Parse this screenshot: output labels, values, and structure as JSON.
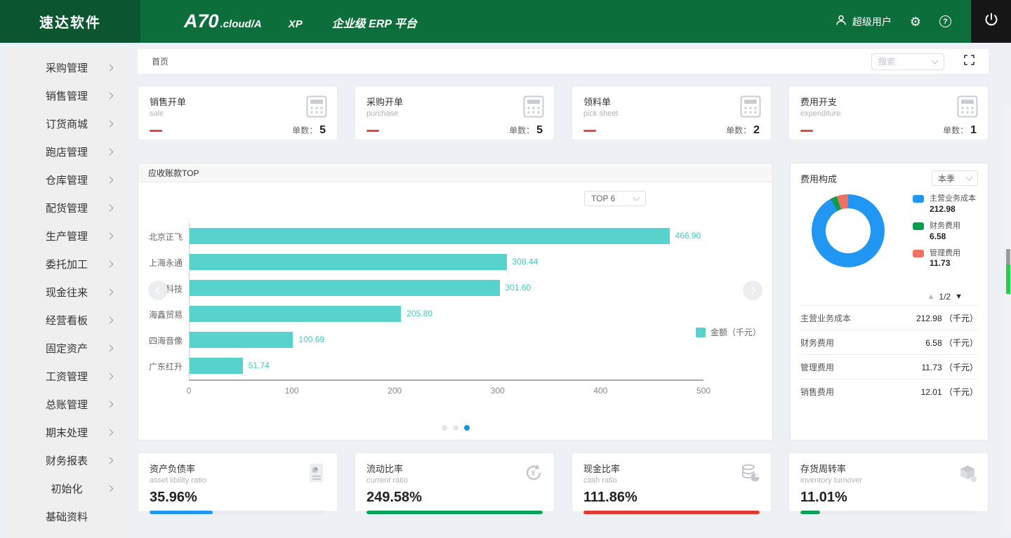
{
  "topbar": {
    "logo": "速达软件",
    "brand_main": "A70",
    "brand_suffix": ".cloud/A",
    "brand_xp": "XP",
    "brand_platform": "企业级 ERP 平台",
    "user": "超级用户"
  },
  "breadcrumb": {
    "home": "首页",
    "search_placeholder": "搜索"
  },
  "sidebar": {
    "items": [
      {
        "label": "采购管理",
        "has_submenu": true
      },
      {
        "label": "销售管理",
        "has_submenu": true
      },
      {
        "label": "订货商城",
        "has_submenu": true
      },
      {
        "label": "跑店管理",
        "has_submenu": true
      },
      {
        "label": "仓库管理",
        "has_submenu": true
      },
      {
        "label": "配货管理",
        "has_submenu": true
      },
      {
        "label": "生产管理",
        "has_submenu": true
      },
      {
        "label": "委托加工",
        "has_submenu": true
      },
      {
        "label": "现金往来",
        "has_submenu": true
      },
      {
        "label": "经营看板",
        "has_submenu": true
      },
      {
        "label": "固定资产",
        "has_submenu": true
      },
      {
        "label": "工资管理",
        "has_submenu": true
      },
      {
        "label": "总账管理",
        "has_submenu": true
      },
      {
        "label": "期末处理",
        "has_submenu": true
      },
      {
        "label": "财务报表",
        "has_submenu": true
      },
      {
        "label": "初始化",
        "has_submenu": true
      },
      {
        "label": "基础资料",
        "has_submenu": false
      }
    ]
  },
  "stat_cards": [
    {
      "title": "销售开单",
      "subtitle": "sale",
      "count_label": "单数：",
      "count": "5"
    },
    {
      "title": "采购开单",
      "subtitle": "purchase",
      "count_label": "单数：",
      "count": "5"
    },
    {
      "title": "领料单",
      "subtitle": "pick sheet",
      "count_label": "单数：",
      "count": "2"
    },
    {
      "title": "费用开支",
      "subtitle": "expenditure",
      "count_label": "单数：",
      "count": "1"
    }
  ],
  "chart_data": [
    {
      "type": "bar",
      "orientation": "horizontal",
      "title": "应收账款TOP",
      "filter_label": "TOP 6",
      "categories": [
        "北京正飞",
        "上海永通",
        "洪海科技",
        "海鑫贸易",
        "四海音像",
        "广东红升"
      ],
      "values": [
        466.9,
        308.44,
        301.6,
        205.8,
        100.69,
        51.74
      ],
      "xlim": [
        0,
        500
      ],
      "xticks": [
        0,
        100,
        200,
        300,
        400,
        500
      ],
      "legend": [
        "金额（千元）"
      ],
      "legend_position": "right",
      "bar_color": "#57d2cc",
      "pagination": {
        "dots": 3,
        "active": 2
      }
    },
    {
      "type": "pie",
      "donut": true,
      "title": "费用构成",
      "period": "本季",
      "slices": [
        {
          "label": "主营业务成本",
          "value": 212.98,
          "color": "#2196f3"
        },
        {
          "label": "财务费用",
          "value": 6.58,
          "color": "#0b9d4e"
        },
        {
          "label": "管理费用",
          "value": 11.73,
          "color": "#f07062"
        },
        {
          "label": "销售费用",
          "value": 12.01,
          "color": ""
        }
      ],
      "visible_legend_count": 3,
      "pager": "1/2",
      "unit": "（千元）"
    }
  ],
  "kpi_cards": [
    {
      "title": "资产负债率",
      "subtitle": "asset libility ratio",
      "value": "35.96%",
      "percent": 36,
      "color": "#2196f3",
      "icon": "report-icon"
    },
    {
      "title": "流动比率",
      "subtitle": "current ratio",
      "value": "249.58%",
      "percent": 100,
      "color": "#09a155",
      "icon": "refresh-yen-icon"
    },
    {
      "title": "现金比率",
      "subtitle": "cash ratio",
      "value": "111.86%",
      "percent": 100,
      "color": "#e23c30",
      "icon": "coins-pie-icon"
    },
    {
      "title": "存货周转率",
      "subtitle": "inventory turnover",
      "value": "11.01%",
      "percent": 11,
      "color": "#09a155",
      "icon": "box-icon"
    }
  ]
}
